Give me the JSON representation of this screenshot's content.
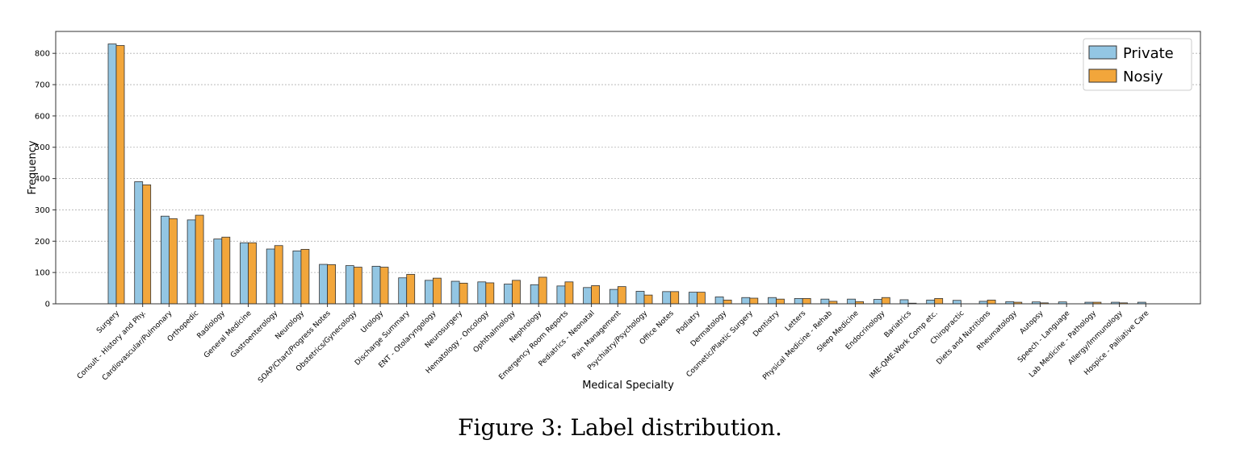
{
  "figure": {
    "caption": "Figure 3: Label distribution."
  },
  "colors": {
    "private": "#93c6e3",
    "noisy": "#f2a63b",
    "edge": "#333333",
    "grid": "#b0b0b0"
  },
  "chart_data": {
    "type": "bar",
    "title": "",
    "xlabel": "Medical Specialty",
    "ylabel": "Frequency",
    "ylim": [
      0,
      870
    ],
    "yticks": [
      0,
      100,
      200,
      300,
      400,
      500,
      600,
      700,
      800
    ],
    "grid": "horizontal dashed",
    "legend_position": "top-right",
    "categories": [
      "Surgery",
      "Consult - History and Phy.",
      "Cardiovascular/Pulmonary",
      "Orthopedic",
      "Radiology",
      "General Medicine",
      "Gastroenterology",
      "Neurology",
      "SOAP/Chart/Progress Notes",
      "Obstetrics/Gynecology",
      "Urology",
      "Discharge Summary",
      "ENT - Otolaryngology",
      "Neurosurgery",
      "Hematology - Oncology",
      "Ophthalmology",
      "Nephrology",
      "Emergency Room Reports",
      "Pediatrics - Neonatal",
      "Pain Management",
      "Psychiatry/Psychology",
      "Office Notes",
      "Podiatry",
      "Dermatology",
      "Cosmetic/Plastic Surgery",
      "Dentistry",
      "Letters",
      "Physical Medicine - Rehab",
      "Sleep Medicine",
      "Endocrinology",
      "Bariatrics",
      "IME-QME-Work Comp etc.",
      "Chiropractic",
      "Diets and Nutritions",
      "Rheumatology",
      "Autopsy",
      "Speech - Language",
      "Lab Medicine - Pathology",
      "Allergy/Immunology",
      "Hospice - Palliative Care"
    ],
    "series": [
      {
        "name": "Private",
        "values": [
          830,
          390,
          280,
          268,
          207,
          195,
          175,
          169,
          126,
          122,
          120,
          83,
          75,
          72,
          70,
          63,
          61,
          57,
          52,
          46,
          40,
          39,
          37,
          22,
          20,
          20,
          17,
          15,
          15,
          14,
          13,
          12,
          11,
          8,
          7,
          6,
          6,
          5,
          5,
          5
        ]
      },
      {
        "name": "Nosiy",
        "values": [
          825,
          380,
          272,
          283,
          213,
          195,
          186,
          174,
          125,
          117,
          117,
          94,
          82,
          66,
          67,
          75,
          85,
          70,
          58,
          55,
          28,
          39,
          37,
          12,
          18,
          15,
          17,
          8,
          7,
          20,
          2,
          17,
          0,
          12,
          5,
          3,
          0,
          5,
          3,
          0
        ]
      }
    ]
  }
}
